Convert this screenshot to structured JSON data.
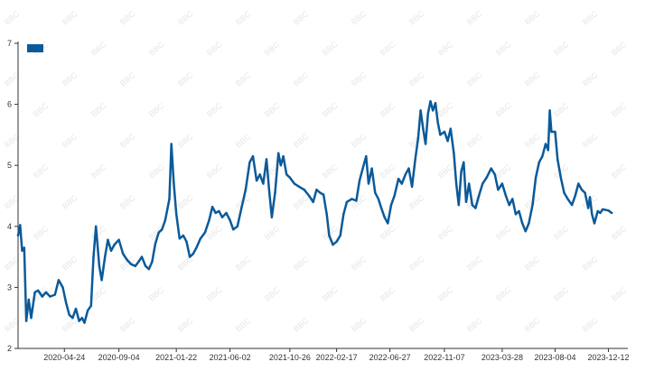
{
  "colors": {
    "series": "#0a5a9a",
    "axis": "#333333",
    "watermark": "#e4e4e4"
  },
  "watermark_text": "BBC",
  "chart_data": {
    "type": "line",
    "title": "",
    "xlabel": "",
    "ylabel": "",
    "grid": false,
    "legend": "top-left",
    "ylim": [
      2,
      7
    ],
    "yticks": [
      2,
      3,
      4,
      5,
      6,
      7
    ],
    "xlim": [
      "2020-01-02",
      "2024-01-02"
    ],
    "xticks": [
      "2020-04-24",
      "2020-09-04",
      "2021-01-22",
      "2021-06-02",
      "2021-10-26",
      "2022-02-17",
      "2022-06-27",
      "2022-11-07",
      "2023-03-28",
      "2023-08-04",
      "2023-12-12"
    ],
    "series": [
      {
        "points": [
          [
            "2020-01-02",
            3.85
          ],
          [
            "2020-01-07",
            4.02
          ],
          [
            "2020-01-12",
            3.6
          ],
          [
            "2020-01-17",
            3.65
          ],
          [
            "2020-01-22",
            2.45
          ],
          [
            "2020-01-28",
            2.8
          ],
          [
            "2020-02-03",
            2.5
          ],
          [
            "2020-02-12",
            2.92
          ],
          [
            "2020-02-20",
            2.95
          ],
          [
            "2020-03-01",
            2.85
          ],
          [
            "2020-03-10",
            2.92
          ],
          [
            "2020-03-20",
            2.85
          ],
          [
            "2020-04-01",
            2.88
          ],
          [
            "2020-04-10",
            3.12
          ],
          [
            "2020-04-20",
            3.0
          ],
          [
            "2020-04-28",
            2.75
          ],
          [
            "2020-05-06",
            2.55
          ],
          [
            "2020-05-14",
            2.5
          ],
          [
            "2020-05-22",
            2.65
          ],
          [
            "2020-05-30",
            2.45
          ],
          [
            "2020-06-06",
            2.5
          ],
          [
            "2020-06-12",
            2.42
          ],
          [
            "2020-06-20",
            2.62
          ],
          [
            "2020-06-28",
            2.7
          ],
          [
            "2020-07-04",
            3.5
          ],
          [
            "2020-07-10",
            4.0
          ],
          [
            "2020-07-18",
            3.35
          ],
          [
            "2020-07-24",
            3.12
          ],
          [
            "2020-08-01",
            3.5
          ],
          [
            "2020-08-08",
            3.78
          ],
          [
            "2020-08-16",
            3.6
          ],
          [
            "2020-08-24",
            3.7
          ],
          [
            "2020-09-04",
            3.78
          ],
          [
            "2020-09-14",
            3.55
          ],
          [
            "2020-09-24",
            3.45
          ],
          [
            "2020-10-04",
            3.38
          ],
          [
            "2020-10-14",
            3.35
          ],
          [
            "2020-10-22",
            3.42
          ],
          [
            "2020-10-30",
            3.5
          ],
          [
            "2020-11-08",
            3.35
          ],
          [
            "2020-11-16",
            3.3
          ],
          [
            "2020-11-24",
            3.42
          ],
          [
            "2020-12-02",
            3.72
          ],
          [
            "2020-12-10",
            3.9
          ],
          [
            "2020-12-18",
            3.95
          ],
          [
            "2020-12-26",
            4.1
          ],
          [
            "2021-01-05",
            4.45
          ],
          [
            "2021-01-10",
            5.35
          ],
          [
            "2021-01-16",
            4.7
          ],
          [
            "2021-01-22",
            4.2
          ],
          [
            "2021-01-30",
            3.8
          ],
          [
            "2021-02-08",
            3.85
          ],
          [
            "2021-02-16",
            3.75
          ],
          [
            "2021-02-24",
            3.5
          ],
          [
            "2021-03-04",
            3.55
          ],
          [
            "2021-03-12",
            3.65
          ],
          [
            "2021-03-22",
            3.8
          ],
          [
            "2021-04-02",
            3.9
          ],
          [
            "2021-04-12",
            4.1
          ],
          [
            "2021-04-20",
            4.32
          ],
          [
            "2021-04-28",
            4.22
          ],
          [
            "2021-05-06",
            4.25
          ],
          [
            "2021-05-14",
            4.15
          ],
          [
            "2021-05-24",
            4.22
          ],
          [
            "2021-06-02",
            4.1
          ],
          [
            "2021-06-10",
            3.95
          ],
          [
            "2021-06-20",
            4.0
          ],
          [
            "2021-06-30",
            4.3
          ],
          [
            "2021-07-10",
            4.6
          ],
          [
            "2021-07-20",
            5.05
          ],
          [
            "2021-07-28",
            5.15
          ],
          [
            "2021-08-06",
            4.75
          ],
          [
            "2021-08-14",
            4.85
          ],
          [
            "2021-08-22",
            4.7
          ],
          [
            "2021-08-30",
            5.1
          ],
          [
            "2021-09-06",
            4.55
          ],
          [
            "2021-09-12",
            4.15
          ],
          [
            "2021-09-20",
            4.55
          ],
          [
            "2021-09-28",
            5.2
          ],
          [
            "2021-10-04",
            5.0
          ],
          [
            "2021-10-10",
            5.15
          ],
          [
            "2021-10-18",
            4.85
          ],
          [
            "2021-10-26",
            4.8
          ],
          [
            "2021-11-06",
            4.7
          ],
          [
            "2021-11-18",
            4.65
          ],
          [
            "2021-11-30",
            4.6
          ],
          [
            "2021-12-12",
            4.5
          ],
          [
            "2021-12-22",
            4.4
          ],
          [
            "2021-12-30",
            4.6
          ],
          [
            "2022-01-08",
            4.55
          ],
          [
            "2022-01-16",
            4.52
          ],
          [
            "2022-01-24",
            4.2
          ],
          [
            "2022-01-30",
            3.85
          ],
          [
            "2022-02-08",
            3.7
          ],
          [
            "2022-02-17",
            3.75
          ],
          [
            "2022-02-26",
            3.85
          ],
          [
            "2022-03-06",
            4.2
          ],
          [
            "2022-03-14",
            4.4
          ],
          [
            "2022-03-26",
            4.45
          ],
          [
            "2022-04-06",
            4.42
          ],
          [
            "2022-04-14",
            4.75
          ],
          [
            "2022-04-22",
            4.95
          ],
          [
            "2022-04-30",
            5.15
          ],
          [
            "2022-05-06",
            4.7
          ],
          [
            "2022-05-14",
            4.95
          ],
          [
            "2022-05-22",
            4.55
          ],
          [
            "2022-05-30",
            4.45
          ],
          [
            "2022-06-06",
            4.3
          ],
          [
            "2022-06-14",
            4.15
          ],
          [
            "2022-06-22",
            4.05
          ],
          [
            "2022-06-30",
            4.35
          ],
          [
            "2022-07-08",
            4.5
          ],
          [
            "2022-07-18",
            4.78
          ],
          [
            "2022-07-26",
            4.7
          ],
          [
            "2022-08-04",
            4.85
          ],
          [
            "2022-08-12",
            4.95
          ],
          [
            "2022-08-20",
            4.65
          ],
          [
            "2022-08-28",
            5.1
          ],
          [
            "2022-09-04",
            5.45
          ],
          [
            "2022-09-10",
            5.9
          ],
          [
            "2022-09-16",
            5.6
          ],
          [
            "2022-09-22",
            5.35
          ],
          [
            "2022-09-28",
            5.85
          ],
          [
            "2022-10-04",
            6.05
          ],
          [
            "2022-10-10",
            5.9
          ],
          [
            "2022-10-16",
            6.02
          ],
          [
            "2022-10-22",
            5.7
          ],
          [
            "2022-10-28",
            5.5
          ],
          [
            "2022-11-07",
            5.55
          ],
          [
            "2022-11-15",
            5.4
          ],
          [
            "2022-11-22",
            5.6
          ],
          [
            "2022-11-30",
            5.2
          ],
          [
            "2022-12-06",
            4.7
          ],
          [
            "2022-12-12",
            4.35
          ],
          [
            "2022-12-18",
            4.9
          ],
          [
            "2022-12-24",
            5.05
          ],
          [
            "2022-12-30",
            4.4
          ],
          [
            "2023-01-06",
            4.7
          ],
          [
            "2023-01-14",
            4.35
          ],
          [
            "2023-01-22",
            4.3
          ],
          [
            "2023-01-30",
            4.5
          ],
          [
            "2023-02-08",
            4.7
          ],
          [
            "2023-02-18",
            4.8
          ],
          [
            "2023-03-01",
            4.95
          ],
          [
            "2023-03-10",
            4.85
          ],
          [
            "2023-03-18",
            4.6
          ],
          [
            "2023-03-28",
            4.7
          ],
          [
            "2023-04-06",
            4.5
          ],
          [
            "2023-04-14",
            4.35
          ],
          [
            "2023-04-22",
            4.45
          ],
          [
            "2023-04-30",
            4.2
          ],
          [
            "2023-05-08",
            4.25
          ],
          [
            "2023-05-16",
            4.05
          ],
          [
            "2023-05-24",
            3.92
          ],
          [
            "2023-06-01",
            4.05
          ],
          [
            "2023-06-10",
            4.35
          ],
          [
            "2023-06-18",
            4.8
          ],
          [
            "2023-06-26",
            5.05
          ],
          [
            "2023-07-04",
            5.15
          ],
          [
            "2023-07-12",
            5.35
          ],
          [
            "2023-07-18",
            5.25
          ],
          [
            "2023-07-22",
            5.9
          ],
          [
            "2023-07-26",
            5.55
          ],
          [
            "2023-08-04",
            5.55
          ],
          [
            "2023-08-10",
            5.1
          ],
          [
            "2023-08-18",
            4.8
          ],
          [
            "2023-08-26",
            4.55
          ],
          [
            "2023-09-04",
            4.45
          ],
          [
            "2023-09-14",
            4.35
          ],
          [
            "2023-09-22",
            4.5
          ],
          [
            "2023-09-30",
            4.7
          ],
          [
            "2023-10-08",
            4.6
          ],
          [
            "2023-10-16",
            4.55
          ],
          [
            "2023-10-24",
            4.3
          ],
          [
            "2023-10-28",
            4.48
          ],
          [
            "2023-11-02",
            4.2
          ],
          [
            "2023-11-08",
            4.05
          ],
          [
            "2023-11-16",
            4.25
          ],
          [
            "2023-11-22",
            4.22
          ],
          [
            "2023-11-28",
            4.28
          ],
          [
            "2023-12-12",
            4.26
          ],
          [
            "2023-12-20",
            4.22
          ]
        ]
      }
    ]
  }
}
